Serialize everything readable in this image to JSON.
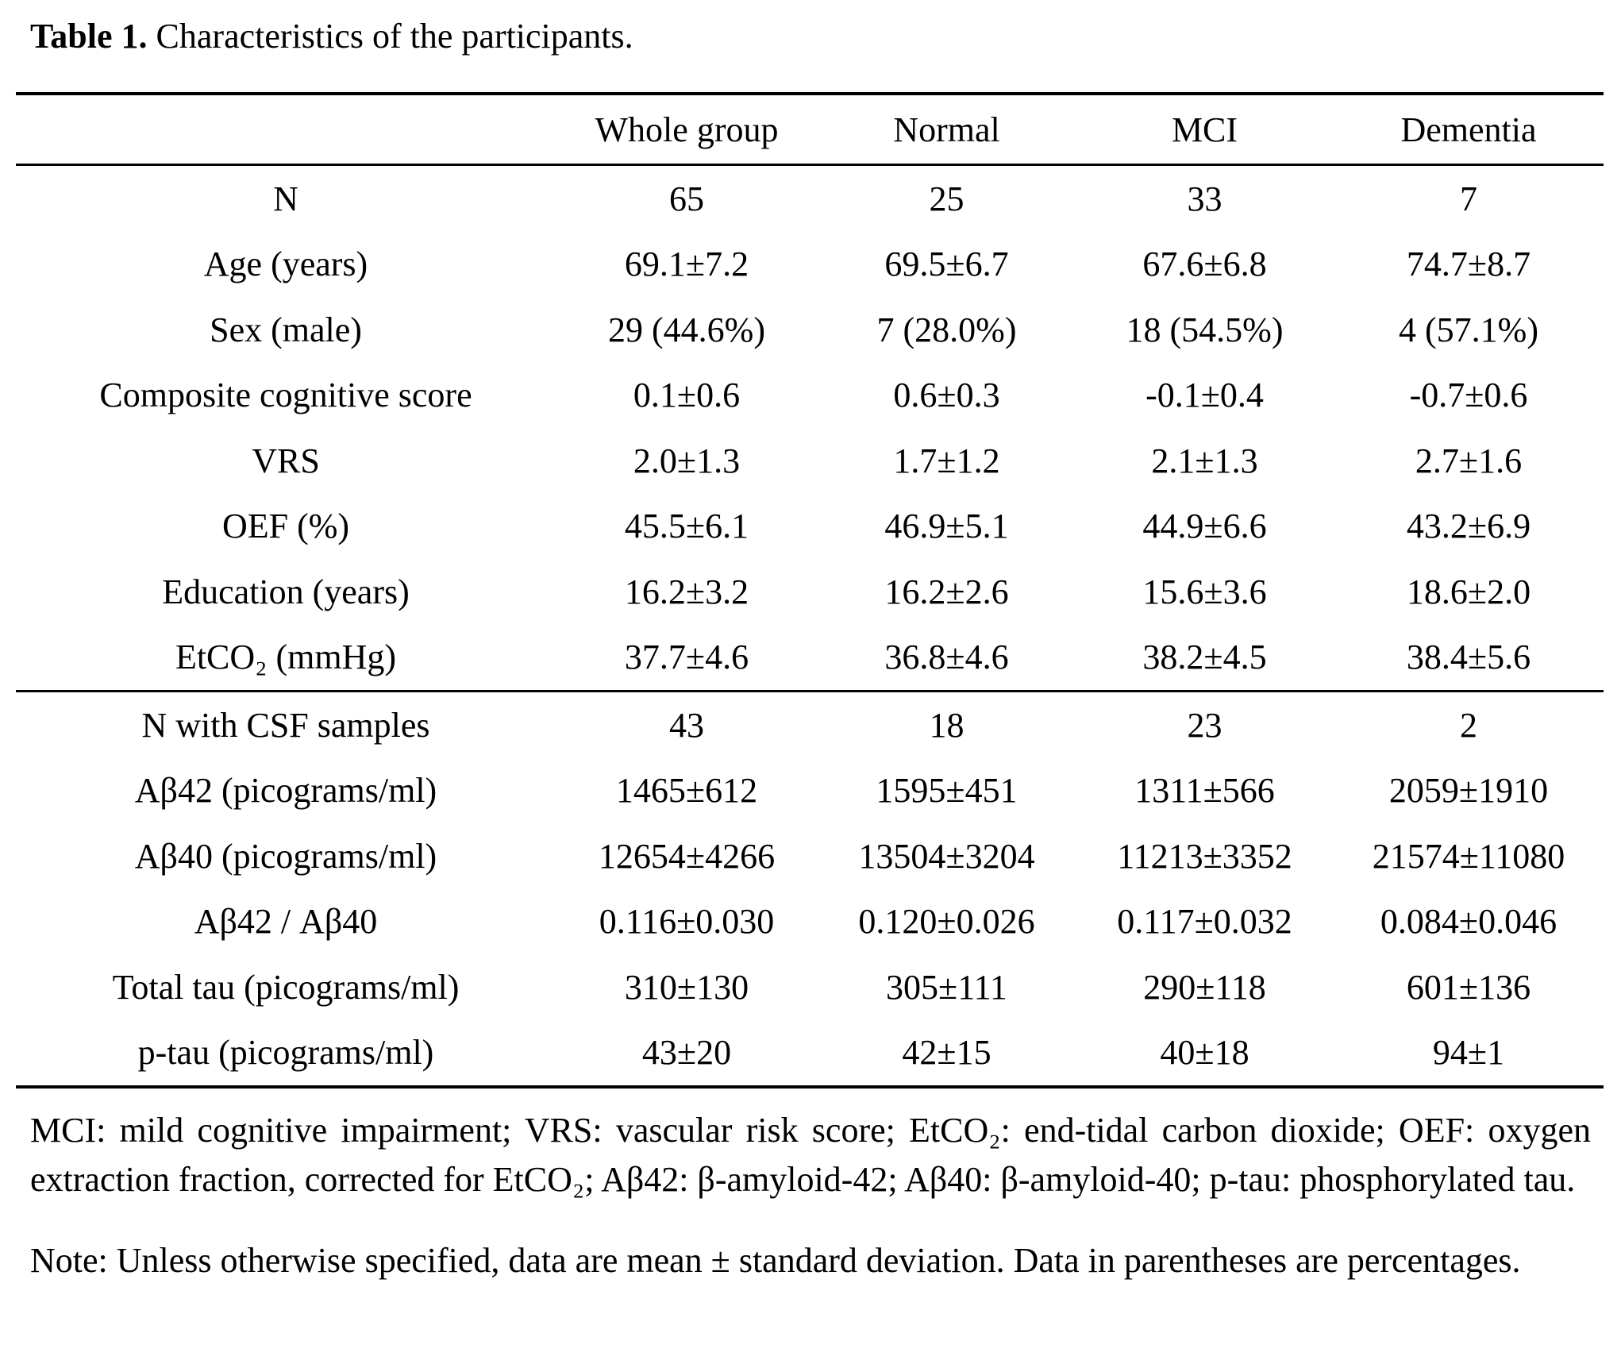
{
  "table": {
    "title_label": "Table 1.",
    "title_text": "Characteristics of the participants.",
    "columns": [
      "",
      "Whole group",
      "Normal",
      "MCI",
      "Dementia"
    ],
    "sections": [
      {
        "rows": [
          {
            "label": "N",
            "values": [
              "65",
              "25",
              "33",
              "7"
            ]
          },
          {
            "label": "Age (years)",
            "values": [
              "69.1±7.2",
              "69.5±6.7",
              "67.6±6.8",
              "74.7±8.7"
            ]
          },
          {
            "label": "Sex (male)",
            "values": [
              "29 (44.6%)",
              "7 (28.0%)",
              "18 (54.5%)",
              "4 (57.1%)"
            ]
          },
          {
            "label": "Composite cognitive score",
            "values": [
              "0.1±0.6",
              "0.6±0.3",
              "-0.1±0.4",
              "-0.7±0.6"
            ]
          },
          {
            "label": "VRS",
            "values": [
              "2.0±1.3",
              "1.7±1.2",
              "2.1±1.3",
              "2.7±1.6"
            ]
          },
          {
            "label": "OEF (%)",
            "values": [
              "45.5±6.1",
              "46.9±5.1",
              "44.9±6.6",
              "43.2±6.9"
            ]
          },
          {
            "label": "Education (years)",
            "values": [
              "16.2±3.2",
              "16.2±2.6",
              "15.6±3.6",
              "18.6±2.0"
            ]
          },
          {
            "label": "EtCO₂ (mmHg)",
            "values": [
              "37.7±4.6",
              "36.8±4.6",
              "38.2±4.5",
              "38.4±5.6"
            ]
          }
        ]
      },
      {
        "rows": [
          {
            "label": "N with CSF samples",
            "values": [
              "43",
              "18",
              "23",
              "2"
            ]
          },
          {
            "label": "Aβ42 (picograms/ml)",
            "values": [
              "1465±612",
              "1595±451",
              "1311±566",
              "2059±1910"
            ]
          },
          {
            "label": "Aβ40 (picograms/ml)",
            "values": [
              "12654±4266",
              "13504±3204",
              "11213±3352",
              "21574±11080"
            ]
          },
          {
            "label": "Aβ42 / Aβ40",
            "values": [
              "0.116±0.030",
              "0.120±0.026",
              "0.117±0.032",
              "0.084±0.046"
            ]
          },
          {
            "label": "Total tau (picograms/ml)",
            "values": [
              "310±130",
              "305±111",
              "290±118",
              "601±136"
            ]
          },
          {
            "label": "p-tau (picograms/ml)",
            "values": [
              "43±20",
              "42±15",
              "40±18",
              "94±1"
            ]
          }
        ]
      }
    ],
    "footnote": "MCI: mild cognitive impairment; VRS: vascular risk score; EtCO₂: end-tidal carbon dioxide; OEF: oxygen extraction fraction, corrected for EtCO₂; Aβ42: β-amyloid-42; Aβ40: β-amyloid-40; p-tau: phosphorylated tau.",
    "note": "Note: Unless otherwise specified, data are mean ± standard deviation. Data in parentheses are percentages."
  }
}
